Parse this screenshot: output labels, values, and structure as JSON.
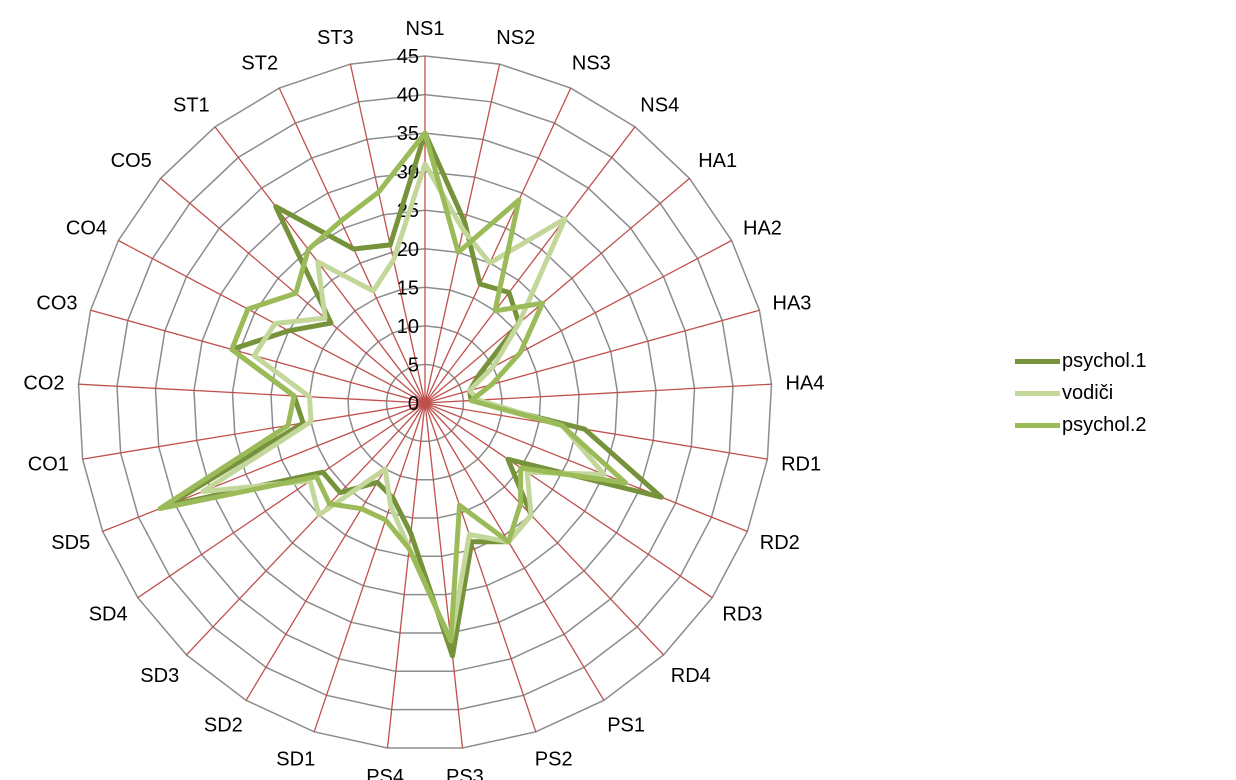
{
  "chart_data": {
    "type": "radar",
    "categories": [
      "NS1",
      "NS2",
      "NS3",
      "NS4",
      "HA1",
      "HA2",
      "HA3",
      "HA4",
      "RD1",
      "RD2",
      "RD3",
      "RD4",
      "PS1",
      "PS2",
      "PS3",
      "PS4",
      "SD1",
      "SD2",
      "SD3",
      "SD4",
      "SD5",
      "CO1",
      "CO2",
      "CO3",
      "CO4",
      "CO5",
      "ST1",
      "ST2",
      "ST3"
    ],
    "rlim": [
      0,
      45
    ],
    "ticks": [
      0,
      5,
      10,
      15,
      20,
      25,
      30,
      35,
      40,
      45
    ],
    "grid": true,
    "legend_position": "right",
    "series": [
      {
        "name": "psychol.1",
        "color": "#76933c",
        "values": [
          35,
          24,
          17,
          18,
          16,
          8,
          6,
          6,
          21,
          33,
          13,
          20,
          21,
          19,
          33,
          17,
          13,
          12,
          16,
          16,
          36,
          16,
          17,
          26,
          20,
          16,
          32,
          22,
          21
        ]
      },
      {
        "name": "vodiči",
        "color": "#c4d79b",
        "values": [
          31,
          23,
          20,
          30,
          16,
          10,
          6,
          7,
          18,
          25,
          16,
          20,
          21,
          18,
          31,
          19,
          14,
          10,
          20,
          18,
          31,
          15,
          15,
          23,
          22,
          17,
          23,
          16,
          19
        ]
      },
      {
        "name": "psychol.2",
        "color": "#9bbb59",
        "values": [
          35,
          20,
          29,
          15,
          20,
          14,
          9,
          6,
          18,
          28,
          15,
          18,
          21,
          14,
          31,
          19,
          16,
          16,
          18,
          17,
          37,
          18,
          17,
          26,
          26,
          22,
          25,
          26,
          28
        ]
      }
    ]
  }
}
